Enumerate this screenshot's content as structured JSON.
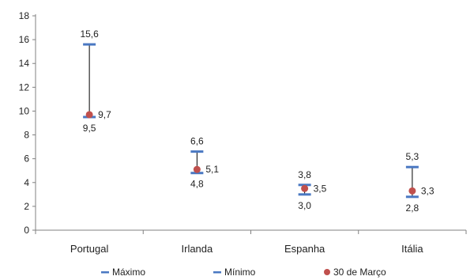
{
  "chart_data": {
    "type": "scatter",
    "title": "",
    "xlabel": "",
    "ylabel": "",
    "ylim": [
      0,
      18
    ],
    "yticks": [
      "0",
      "2",
      "4",
      "6",
      "8",
      "10",
      "12",
      "14",
      "16",
      "18"
    ],
    "categories": [
      "Portugal",
      "Irlanda",
      "Espanha",
      "Itália"
    ],
    "series": [
      {
        "name": "Máximo",
        "values": [
          15.6,
          6.6,
          3.8,
          5.3
        ],
        "labels": [
          "15,6",
          "6,6",
          "3,8",
          "5,3"
        ],
        "color": "#4a78c2",
        "marker": "dash"
      },
      {
        "name": "Mínimo",
        "values": [
          9.5,
          4.8,
          3.0,
          2.8
        ],
        "labels": [
          "9,5",
          "4,8",
          "3,0",
          "2,8"
        ],
        "color": "#4a78c2",
        "marker": "dash"
      },
      {
        "name": "30 de Março",
        "values": [
          9.7,
          5.1,
          3.5,
          3.3
        ],
        "labels": [
          "9,7",
          "5,1",
          "3,5",
          "3,3"
        ],
        "color": "#c0504d",
        "marker": "circle"
      }
    ],
    "range_line_color": "#000000",
    "grid": false,
    "legend_position": "bottom"
  }
}
